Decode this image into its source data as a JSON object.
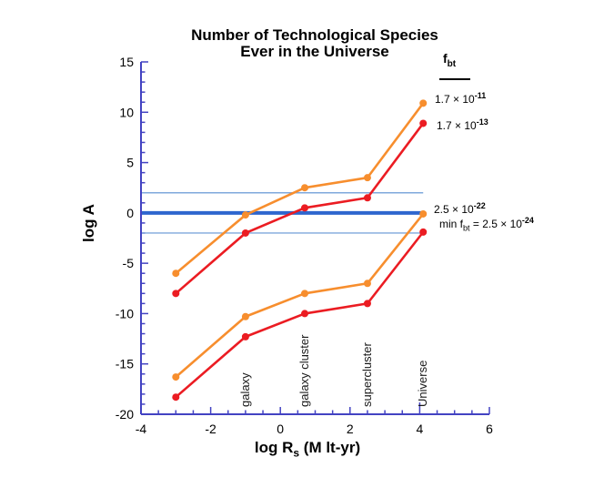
{
  "chart_data": {
    "type": "line",
    "title_line1": "Number of Technological Species",
    "title_line2": "Ever in the Universe",
    "ylabel": "log A",
    "xlabel": {
      "prefix": "log R",
      "sub": "s",
      "suffix": " (M lt-yr)"
    },
    "xlim": [
      -4,
      6
    ],
    "ylim": [
      -20,
      15
    ],
    "x_major_ticks": [
      -4,
      -2,
      0,
      2,
      4,
      6
    ],
    "x_minor_step": 0.5,
    "x_emphasized_tick": 4,
    "y_major_ticks": [
      15,
      10,
      5,
      0,
      -5,
      -10,
      -15,
      -20
    ],
    "y_minor_step": 1,
    "grid": false,
    "axis_color": "#4343c2",
    "x": [
      -3,
      -1,
      0.7,
      2.5,
      4.1
    ],
    "series": [
      {
        "name": "f_bt = 1.7e-11",
        "color": "#f78e2e",
        "values": [
          -6,
          -0.2,
          2.5,
          3.5,
          10.9
        ]
      },
      {
        "name": "f_bt = 1.7e-13",
        "color": "#eb1c22",
        "values": [
          -8,
          -2,
          0.5,
          1.5,
          8.9
        ]
      },
      {
        "name": "f_bt = 2.5e-22",
        "color": "#f78e2e",
        "values": [
          -16.3,
          -10.3,
          -8,
          -7,
          -0.1
        ]
      },
      {
        "name": "min f_bt = 2.5e-24",
        "color": "#eb1c22",
        "values": [
          -18.3,
          -12.3,
          -10,
          -9,
          -1.9
        ]
      }
    ],
    "reference_lines": [
      {
        "y": 2,
        "style": "thin",
        "color": "#7fa8dc",
        "x_end": 4.1
      },
      {
        "y": 0,
        "style": "thick",
        "color": "#2e66ce",
        "x_end": 4.1
      },
      {
        "y": -2,
        "style": "thin",
        "color": "#7fa8dc",
        "x_end": 4.1
      }
    ],
    "scale_labels": [
      {
        "label": "galaxy",
        "x": -1
      },
      {
        "label": "galaxy cluster",
        "x": 0.7
      },
      {
        "label": "supercluster",
        "x": 2.5
      },
      {
        "label": "Universe",
        "x": 4.1
      }
    ],
    "legend": {
      "position": "right-adjacent-to-endpoints",
      "header": {
        "symbol": "f",
        "sub": "bt"
      },
      "entries": [
        {
          "mantissa": "1.7 × 10",
          "exponent": "-11"
        },
        {
          "mantissa": "1.7 × 10",
          "exponent": "-13"
        },
        {
          "mantissa": "2.5 × 10",
          "exponent": "-22"
        },
        {
          "prefix": "min f",
          "sub": "bt",
          "mantissa": " = 2.5 × 10",
          "exponent": "-24"
        }
      ]
    }
  }
}
